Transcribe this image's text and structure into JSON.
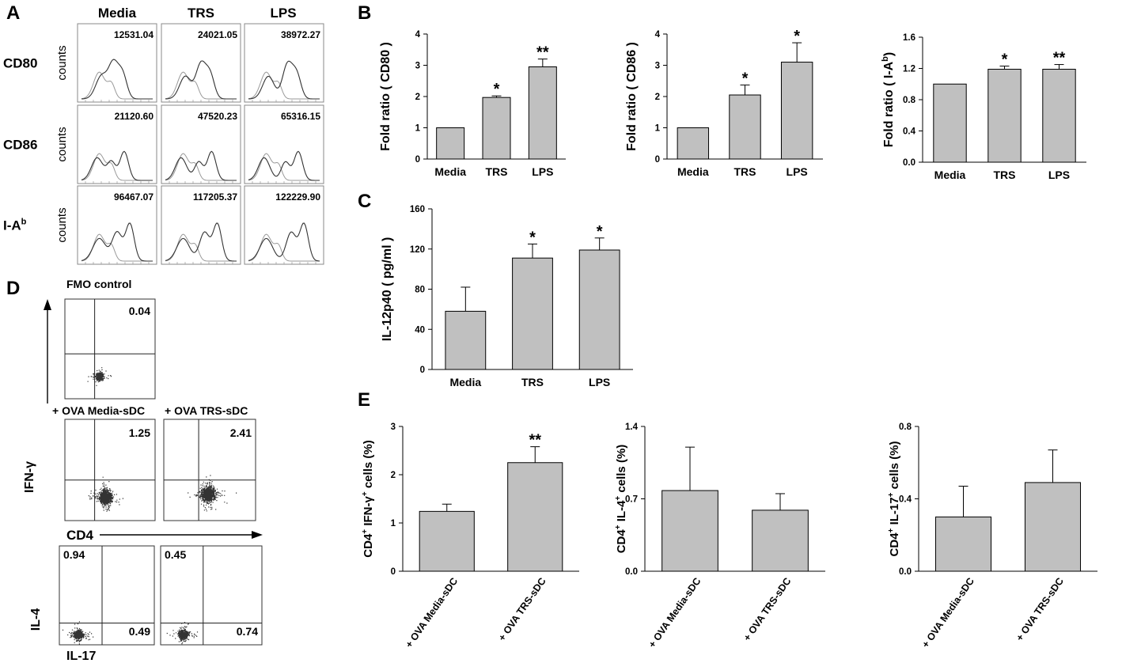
{
  "panel_letters": [
    "A",
    "B",
    "C",
    "D",
    "E"
  ],
  "panel_a": {
    "columns": [
      "Media",
      "TRS",
      "LPS"
    ],
    "rows": [
      {
        "marker": "CD80",
        "mfi": [
          "12531.04",
          "24021.05",
          "38972.27"
        ]
      },
      {
        "marker": "CD86",
        "mfi": [
          "21120.60",
          "47520.23",
          "65316.15"
        ]
      },
      {
        "marker": "I-A",
        "marker_sup": "b",
        "mfi": [
          "96467.07",
          "117205.37",
          "122229.90"
        ]
      }
    ],
    "ylabel": "counts"
  },
  "panel_d": {
    "fmo_title": "FMO control",
    "fmo_value": "0.04",
    "ifn_headers": [
      "+ OVA  Media-sDC",
      "+ OVA  TRS-sDC"
    ],
    "ifn_values": [
      "1.25",
      "2.41"
    ],
    "ifn_ylabel": "IFN-γ",
    "cd4_label": "CD4",
    "il4_ylabel": "IL-4",
    "il17_label": "IL-17",
    "il_top_left": [
      "0.94",
      "0.45"
    ],
    "il_bottom_right": [
      "0.49",
      "0.74"
    ]
  },
  "chart_data": [
    {
      "id": "b1",
      "type": "bar",
      "panel": "B",
      "categories": [
        "Media",
        "TRS",
        "LPS"
      ],
      "values": [
        1.0,
        1.97,
        2.95
      ],
      "errors": [
        0,
        0.05,
        0.25
      ],
      "sig": [
        "",
        "*",
        "**"
      ],
      "ylabel": "Fold ratio ( CD80 )",
      "ylabel_sup": "",
      "ylabel_tail": "",
      "ylim": [
        0,
        4
      ],
      "ticks": [
        "0",
        "1",
        "2",
        "3",
        "4"
      ]
    },
    {
      "id": "b2",
      "type": "bar",
      "panel": "B",
      "categories": [
        "Media",
        "TRS",
        "LPS"
      ],
      "values": [
        1.0,
        2.05,
        3.1
      ],
      "errors": [
        0,
        0.32,
        0.62
      ],
      "sig": [
        "",
        "*",
        "*"
      ],
      "ylabel": "Fold ratio ( CD86 )",
      "ylabel_sup": "",
      "ylabel_tail": "",
      "ylim": [
        0,
        4
      ],
      "ticks": [
        "0",
        "1",
        "2",
        "3",
        "4"
      ]
    },
    {
      "id": "b3",
      "type": "bar",
      "panel": "B",
      "categories": [
        "Media",
        "TRS",
        "LPS"
      ],
      "values": [
        1.0,
        1.19,
        1.19
      ],
      "errors": [
        0,
        0.04,
        0.06
      ],
      "sig": [
        "",
        "*",
        "**"
      ],
      "ylabel": "Fold ratio ( I-A",
      "ylabel_sup": "b",
      "ylabel_tail": ")",
      "ylim": [
        0,
        1.6
      ],
      "ticks": [
        "0.0",
        "0.4",
        "0.8",
        "1.2",
        "1.6"
      ]
    },
    {
      "id": "c",
      "type": "bar",
      "panel": "C",
      "categories": [
        "Media",
        "TRS",
        "LPS"
      ],
      "values": [
        58,
        111,
        119
      ],
      "errors": [
        24,
        14,
        12
      ],
      "sig": [
        "",
        "*",
        "*"
      ],
      "ylabel": "IL-12p40 ( pg/ml )",
      "ylabel_sup": "",
      "ylabel_tail": "",
      "ylim": [
        0,
        160
      ],
      "ticks": [
        "0",
        "40",
        "80",
        "120",
        "160"
      ]
    },
    {
      "id": "e1",
      "type": "bar",
      "panel": "E",
      "categories": [
        "+ OVA Media-sDC",
        "+ OVA TRS-sDC"
      ],
      "values": [
        1.24,
        2.25
      ],
      "errors": [
        0.15,
        0.33
      ],
      "sig": [
        "",
        "**"
      ],
      "ylabel": "CD4+ IFN-γ+ cells (%)",
      "ylim": [
        0,
        3
      ],
      "ticks": [
        "0",
        "1",
        "2",
        "3"
      ]
    },
    {
      "id": "e2",
      "type": "bar",
      "panel": "E",
      "categories": [
        "+ OVA Media-sDC",
        "+ OVA TRS-sDC"
      ],
      "values": [
        0.78,
        0.59
      ],
      "errors": [
        0.42,
        0.16
      ],
      "sig": [
        "",
        ""
      ],
      "ylabel": "CD4+ IL-4+ cells (%)",
      "ylim": [
        0,
        1.4
      ],
      "ticks": [
        "0.0",
        "0.7",
        "1.4"
      ]
    },
    {
      "id": "e3",
      "type": "bar",
      "panel": "E",
      "categories": [
        "+ OVA Media-sDC",
        "+ OVA TRS-sDC"
      ],
      "values": [
        0.3,
        0.49
      ],
      "errors": [
        0.17,
        0.18
      ],
      "sig": [
        "",
        ""
      ],
      "ylabel": "CD4+ IL-17+ cells (%)",
      "ylim": [
        0,
        0.8
      ],
      "ticks": [
        "0.0",
        "0.4",
        "0.8"
      ]
    }
  ]
}
